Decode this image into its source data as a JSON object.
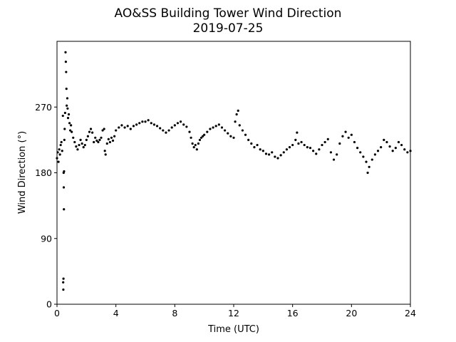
{
  "chart_data": {
    "type": "scatter",
    "title": "AO&SS Building Tower Wind Direction",
    "subtitle": "2019-07-25",
    "xlabel": "Time (UTC)",
    "ylabel": "Wind Direction (°)",
    "xlim": [
      0,
      24
    ],
    "ylim": [
      0,
      360
    ],
    "xticks": [
      0,
      4,
      8,
      12,
      16,
      20,
      24
    ],
    "xtick_labels": [
      "0",
      "4",
      "8",
      "12",
      "16",
      "20",
      "24"
    ],
    "yticks": [
      0,
      90,
      180,
      270
    ],
    "ytick_labels": [
      "0",
      "90",
      "180",
      "270"
    ],
    "grid": false,
    "legend": "none",
    "marker_color": "#000000",
    "series": [
      {
        "points": [
          [
            0.0,
            200
          ],
          [
            0.05,
            208
          ],
          [
            0.1,
            195
          ],
          [
            0.15,
            212
          ],
          [
            0.2,
            205
          ],
          [
            0.25,
            218
          ],
          [
            0.3,
            222
          ],
          [
            0.35,
            210
          ],
          [
            0.4,
            258
          ],
          [
            0.42,
            30
          ],
          [
            0.43,
            20
          ],
          [
            0.44,
            35
          ],
          [
            0.45,
            180
          ],
          [
            0.46,
            160
          ],
          [
            0.47,
            130
          ],
          [
            0.48,
            182
          ],
          [
            0.5,
            225
          ],
          [
            0.52,
            240
          ],
          [
            0.55,
            262
          ],
          [
            0.58,
            345
          ],
          [
            0.6,
            332
          ],
          [
            0.62,
            318
          ],
          [
            0.64,
            295
          ],
          [
            0.66,
            272
          ],
          [
            0.7,
            282
          ],
          [
            0.72,
            268
          ],
          [
            0.75,
            255
          ],
          [
            0.8,
            260
          ],
          [
            0.85,
            248
          ],
          [
            0.9,
            238
          ],
          [
            0.95,
            245
          ],
          [
            1.0,
            236
          ],
          [
            1.1,
            228
          ],
          [
            1.2,
            222
          ],
          [
            1.3,
            216
          ],
          [
            1.4,
            212
          ],
          [
            1.5,
            218
          ],
          [
            1.6,
            225
          ],
          [
            1.7,
            220
          ],
          [
            1.8,
            215
          ],
          [
            1.9,
            218
          ],
          [
            2.0,
            225
          ],
          [
            2.1,
            230
          ],
          [
            2.2,
            236
          ],
          [
            2.3,
            240
          ],
          [
            2.4,
            235
          ],
          [
            2.5,
            222
          ],
          [
            2.6,
            228
          ],
          [
            2.7,
            224
          ],
          [
            2.8,
            222
          ],
          [
            2.9,
            225
          ],
          [
            3.0,
            228
          ],
          [
            3.1,
            238
          ],
          [
            3.2,
            240
          ],
          [
            3.25,
            210
          ],
          [
            3.3,
            205
          ],
          [
            3.4,
            220
          ],
          [
            3.5,
            226
          ],
          [
            3.6,
            222
          ],
          [
            3.7,
            228
          ],
          [
            3.8,
            224
          ],
          [
            3.9,
            230
          ],
          [
            4.0,
            238
          ],
          [
            4.2,
            242
          ],
          [
            4.4,
            245
          ],
          [
            4.6,
            242
          ],
          [
            4.8,
            244
          ],
          [
            5.0,
            240
          ],
          [
            5.2,
            244
          ],
          [
            5.4,
            246
          ],
          [
            5.6,
            248
          ],
          [
            5.8,
            250
          ],
          [
            6.0,
            250
          ],
          [
            6.2,
            252
          ],
          [
            6.4,
            248
          ],
          [
            6.6,
            246
          ],
          [
            6.8,
            244
          ],
          [
            7.0,
            241
          ],
          [
            7.2,
            238
          ],
          [
            7.4,
            235
          ],
          [
            7.6,
            238
          ],
          [
            7.8,
            242
          ],
          [
            8.0,
            245
          ],
          [
            8.2,
            248
          ],
          [
            8.4,
            250
          ],
          [
            8.6,
            246
          ],
          [
            8.8,
            243
          ],
          [
            9.0,
            236
          ],
          [
            9.1,
            228
          ],
          [
            9.2,
            220
          ],
          [
            9.3,
            215
          ],
          [
            9.4,
            218
          ],
          [
            9.5,
            212
          ],
          [
            9.6,
            220
          ],
          [
            9.7,
            225
          ],
          [
            9.8,
            228
          ],
          [
            9.9,
            230
          ],
          [
            10.0,
            232
          ],
          [
            10.2,
            236
          ],
          [
            10.4,
            240
          ],
          [
            10.6,
            242
          ],
          [
            10.8,
            244
          ],
          [
            11.0,
            246
          ],
          [
            11.2,
            242
          ],
          [
            11.4,
            238
          ],
          [
            11.6,
            234
          ],
          [
            11.8,
            230
          ],
          [
            12.0,
            228
          ],
          [
            12.1,
            250
          ],
          [
            12.2,
            260
          ],
          [
            12.3,
            265
          ],
          [
            12.4,
            245
          ],
          [
            12.6,
            238
          ],
          [
            12.8,
            232
          ],
          [
            13.0,
            225
          ],
          [
            13.2,
            220
          ],
          [
            13.4,
            215
          ],
          [
            13.6,
            218
          ],
          [
            13.8,
            212
          ],
          [
            14.0,
            210
          ],
          [
            14.2,
            206
          ],
          [
            14.4,
            205
          ],
          [
            14.6,
            208
          ],
          [
            14.8,
            202
          ],
          [
            15.0,
            200
          ],
          [
            15.2,
            204
          ],
          [
            15.4,
            208
          ],
          [
            15.6,
            212
          ],
          [
            15.8,
            215
          ],
          [
            16.0,
            218
          ],
          [
            16.2,
            225
          ],
          [
            16.3,
            235
          ],
          [
            16.4,
            220
          ],
          [
            16.6,
            222
          ],
          [
            16.8,
            218
          ],
          [
            17.0,
            215
          ],
          [
            17.2,
            214
          ],
          [
            17.4,
            210
          ],
          [
            17.6,
            206
          ],
          [
            17.8,
            212
          ],
          [
            18.0,
            218
          ],
          [
            18.2,
            222
          ],
          [
            18.4,
            226
          ],
          [
            18.6,
            208
          ],
          [
            18.8,
            198
          ],
          [
            19.0,
            205
          ],
          [
            19.2,
            220
          ],
          [
            19.4,
            230
          ],
          [
            19.6,
            236
          ],
          [
            19.8,
            228
          ],
          [
            20.0,
            232
          ],
          [
            20.2,
            222
          ],
          [
            20.4,
            214
          ],
          [
            20.6,
            208
          ],
          [
            20.8,
            202
          ],
          [
            21.0,
            195
          ],
          [
            21.1,
            180
          ],
          [
            21.2,
            188
          ],
          [
            21.4,
            198
          ],
          [
            21.6,
            205
          ],
          [
            21.8,
            210
          ],
          [
            22.0,
            215
          ],
          [
            22.2,
            225
          ],
          [
            22.4,
            222
          ],
          [
            22.6,
            216
          ],
          [
            22.8,
            210
          ],
          [
            23.0,
            214
          ],
          [
            23.2,
            222
          ],
          [
            23.4,
            218
          ],
          [
            23.6,
            212
          ],
          [
            23.8,
            208
          ],
          [
            24.0,
            210
          ]
        ]
      }
    ]
  }
}
